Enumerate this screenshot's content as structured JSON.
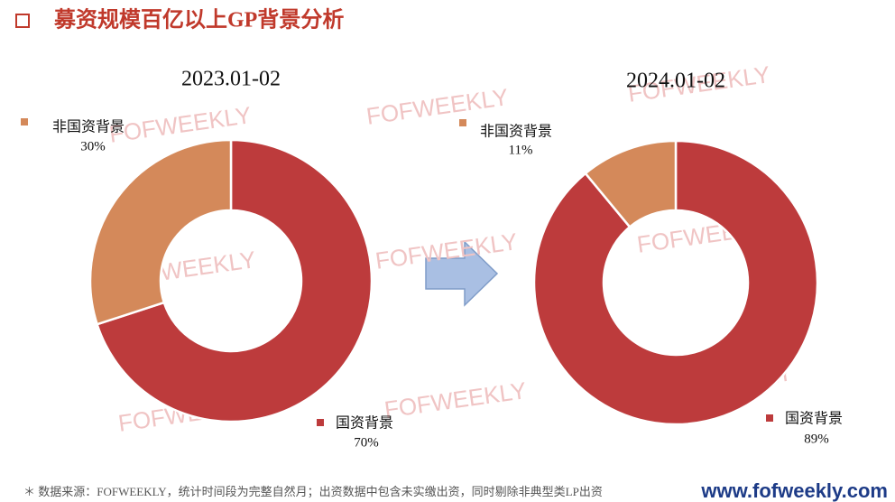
{
  "title": "募资规模百亿以上GP背景分析",
  "chart_data": [
    {
      "type": "donut",
      "title": "2023.01-02",
      "categories": [
        "国资背景",
        "非国资背景"
      ],
      "values": [
        70,
        30
      ],
      "value_labels": [
        "70%",
        "30%"
      ],
      "colors": [
        "#bd3b3c",
        "#d4895a"
      ]
    },
    {
      "type": "donut",
      "title": "2024.01-02",
      "categories": [
        "国资背景",
        "非国资背景"
      ],
      "values": [
        89,
        11
      ],
      "value_labels": [
        "89%",
        "11%"
      ],
      "colors": [
        "#bd3b3c",
        "#d4895a"
      ]
    }
  ],
  "watermarks": [
    "FOFWEEKLY",
    "FOFWEEKLY",
    "FOFWEEKLY",
    "FOFWEEKLY",
    "FOFWEEKLY",
    "FOFWEEKLY",
    "FOFWEEKLY",
    "FOFWEEKLY",
    "FOFWEEKLY"
  ],
  "footnote": "＊ 数据来源：FOFWEEKLY，统计时间段为完整自然月；出资数据中包含未实缴出资，同时剔除非典型类LP出资",
  "website": "www.fofweekly.com"
}
